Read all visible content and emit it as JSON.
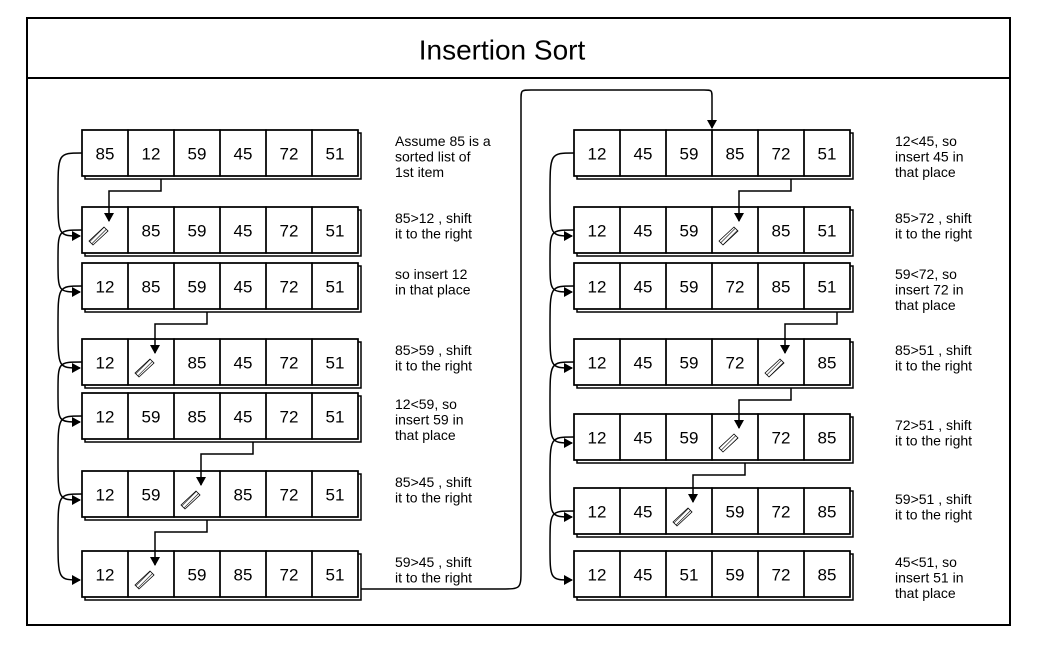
{
  "title": "Insertion  Sort",
  "columns": [
    {
      "steps": [
        {
          "cells": [
            "85",
            "12",
            "59",
            "45",
            "72",
            "51"
          ],
          "note": [
            "Assume 85 is a",
            "sorted list of",
            "1st item"
          ]
        },
        {
          "cells": [
            "",
            "85",
            "59",
            "45",
            "72",
            "51"
          ],
          "note": [
            "85>12 , shift",
            "it to the right"
          ]
        },
        {
          "cells": [
            "12",
            "85",
            "59",
            "45",
            "72",
            "51"
          ],
          "note": [
            "so insert 12",
            "in that place"
          ]
        },
        {
          "cells": [
            "12",
            "",
            "85",
            "45",
            "72",
            "51"
          ],
          "note": [
            "85>59 , shift",
            "it to the right"
          ]
        },
        {
          "cells": [
            "12",
            "59",
            "85",
            "45",
            "72",
            "51"
          ],
          "note": [
            "12<59, so",
            "insert 59 in",
            "that place"
          ]
        },
        {
          "cells": [
            "12",
            "59",
            "",
            "85",
            "72",
            "51"
          ],
          "note": [
            "85>45 , shift",
            "it to the right"
          ]
        },
        {
          "cells": [
            "12",
            "",
            "59",
            "85",
            "72",
            "51"
          ],
          "note": [
            "59>45 , shift",
            "it to the right"
          ]
        }
      ]
    },
    {
      "steps": [
        {
          "cells": [
            "12",
            "45",
            "59",
            "85",
            "72",
            "51"
          ],
          "note": [
            "12<45, so",
            "insert 45 in",
            "that place"
          ]
        },
        {
          "cells": [
            "12",
            "45",
            "59",
            "",
            "85",
            "51"
          ],
          "note": [
            "85>72 , shift",
            "it to the right"
          ]
        },
        {
          "cells": [
            "12",
            "45",
            "59",
            "72",
            "85",
            "51"
          ],
          "note": [
            "59<72, so",
            "insert 72 in",
            "that place"
          ]
        },
        {
          "cells": [
            "12",
            "45",
            "59",
            "72",
            "",
            "85"
          ],
          "note": [
            "85>51 , shift",
            "it to the right"
          ]
        },
        {
          "cells": [
            "12",
            "45",
            "59",
            "",
            "72",
            "85"
          ],
          "note": [
            "72>51 , shift",
            "it to the right"
          ]
        },
        {
          "cells": [
            "12",
            "45",
            "",
            "59",
            "72",
            "85"
          ],
          "note": [
            "59>51 , shift",
            "it to the right"
          ]
        },
        {
          "cells": [
            "12",
            "45",
            "51",
            "59",
            "72",
            "85"
          ],
          "note": [
            "45<51, so",
            "insert 51 in",
            "that place"
          ]
        }
      ]
    }
  ]
}
